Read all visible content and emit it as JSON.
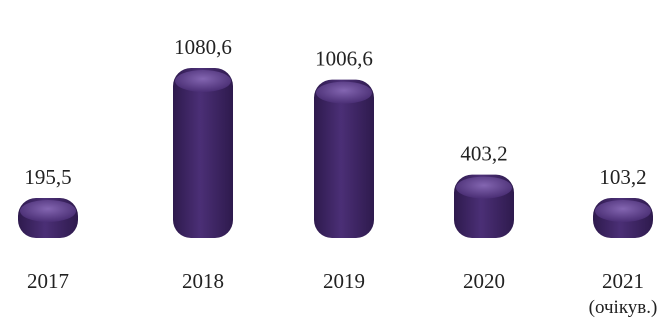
{
  "chart_data": {
    "type": "bar",
    "categories": [
      "2017",
      "2018",
      "2019",
      "2020",
      "2021"
    ],
    "category_notes": [
      "",
      "",
      "",
      "",
      "(очікув.)"
    ],
    "values": [
      195.5,
      1080.6,
      1006.6,
      403.2,
      103.2
    ],
    "value_labels": [
      "195,5",
      "1080,6",
      "1006,6",
      "403,2",
      "103,2"
    ],
    "bar_shape": "3d-cylinder",
    "colors": {
      "bar": "#4b2f76",
      "bar_dark": "#2e1a4d",
      "bar_light": "#8a6cb8",
      "text": "#222222"
    },
    "grid": false,
    "legend": "none",
    "title": "",
    "xlabel": "",
    "ylabel": ""
  }
}
